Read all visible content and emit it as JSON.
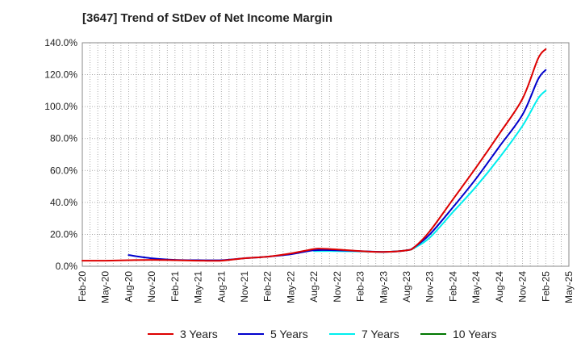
{
  "chart_data": {
    "type": "line",
    "title": "[3647]  Trend of StDev of Net Income Margin",
    "xlabel": "",
    "ylabel": "",
    "x_ticks": [
      "Feb-20",
      "May-20",
      "Aug-20",
      "Nov-20",
      "Feb-21",
      "May-21",
      "Aug-21",
      "Nov-21",
      "Feb-22",
      "May-22",
      "Aug-22",
      "Nov-22",
      "Feb-23",
      "May-23",
      "Aug-23",
      "Nov-23",
      "Feb-24",
      "May-24",
      "Aug-24",
      "Nov-24",
      "Feb-25",
      "May-25"
    ],
    "y_ticks": [
      "0.0%",
      "20.0%",
      "40.0%",
      "60.0%",
      "80.0%",
      "100.0%",
      "120.0%",
      "140.0%"
    ],
    "ylim": [
      0,
      140
    ],
    "grid": true,
    "legend_position": "bottom",
    "series": [
      {
        "name": "3 Years",
        "color": "#dd0000",
        "x": [
          "2020-02",
          "2020-05",
          "2020-08",
          "2020-11",
          "2021-02",
          "2021-05",
          "2021-08",
          "2021-11",
          "2022-02",
          "2022-05",
          "2022-08",
          "2022-09",
          "2022-11",
          "2023-02",
          "2023-05",
          "2023-08",
          "2023-09",
          "2023-11",
          "2024-02",
          "2024-05",
          "2024-08",
          "2024-11",
          "2025-01",
          "2025-02"
        ],
        "y": [
          3.5,
          3.5,
          3.8,
          4.0,
          3.8,
          3.5,
          3.5,
          5.0,
          6.0,
          8.0,
          10.8,
          11.0,
          10.5,
          9.5,
          9.0,
          10.0,
          12.0,
          22.0,
          42.0,
          62.0,
          83.0,
          105.0,
          130.0,
          136.0
        ]
      },
      {
        "name": "5 Years",
        "color": "#0000cc",
        "x": [
          "2020-08",
          "2020-11",
          "2021-02",
          "2021-05",
          "2021-08",
          "2021-11",
          "2022-02",
          "2022-05",
          "2022-08",
          "2022-11",
          "2023-02",
          "2023-05",
          "2023-08",
          "2023-09",
          "2023-11",
          "2024-02",
          "2024-05",
          "2024-08",
          "2024-11",
          "2025-01",
          "2025-02"
        ],
        "y": [
          7.0,
          5.0,
          4.0,
          3.8,
          3.8,
          5.0,
          6.0,
          7.5,
          10.0,
          10.0,
          9.5,
          9.0,
          10.0,
          12.0,
          20.0,
          37.0,
          55.0,
          75.0,
          95.0,
          117.0,
          123.0
        ]
      },
      {
        "name": "7 Years",
        "color": "#00eeee",
        "x": [
          "2022-08",
          "2022-11",
          "2023-02",
          "2023-05",
          "2023-08",
          "2023-09",
          "2023-11",
          "2024-02",
          "2024-05",
          "2024-08",
          "2024-11",
          "2025-01",
          "2025-02"
        ],
        "y": [
          9.5,
          9.5,
          9.3,
          9.0,
          10.0,
          11.5,
          18.0,
          34.0,
          50.0,
          68.0,
          88.0,
          105.0,
          110.0
        ]
      },
      {
        "name": "10 Years",
        "color": "#007700",
        "x": [],
        "y": []
      }
    ]
  }
}
